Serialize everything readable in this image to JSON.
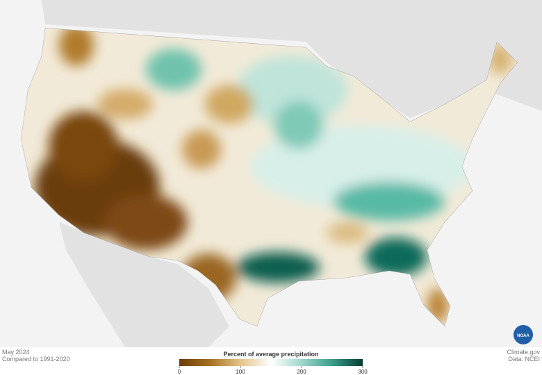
{
  "footer": {
    "date": "May 2024",
    "baseline": "Compared to 1991-2020",
    "credit": "Climate.gov",
    "source": "Data: NCEI"
  },
  "logo": {
    "label": "NOAA"
  },
  "legend": {
    "title": "Percent of average precipitation",
    "range": [
      0,
      300
    ],
    "ticks": [
      0,
      100,
      200,
      300
    ],
    "colors": [
      "#6b3d0a",
      "#a8701f",
      "#e3c48a",
      "#ffffff",
      "#9fd8cb",
      "#3a9d8a",
      "#053d33"
    ]
  }
}
